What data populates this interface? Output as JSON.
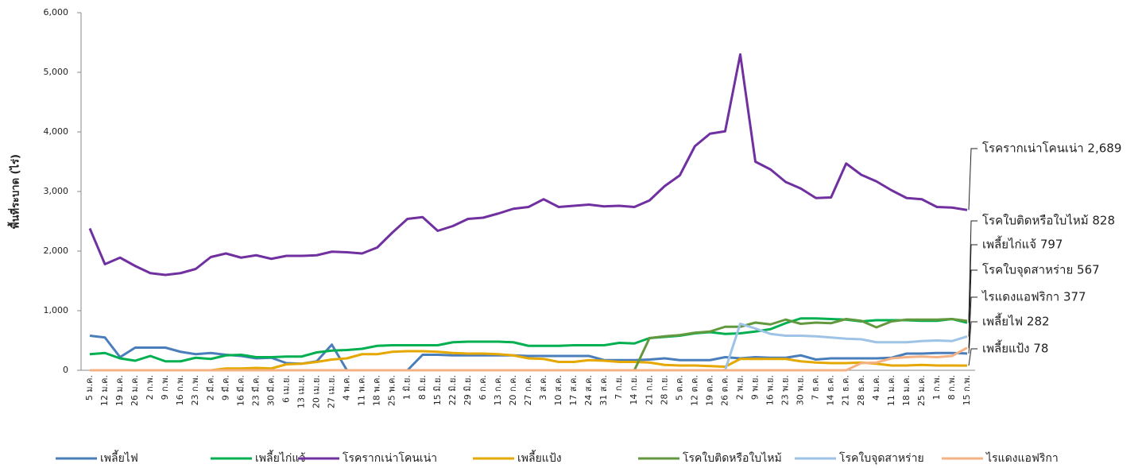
{
  "chart_data": {
    "type": "line",
    "ylabel": "พื้นที่ระบาด (ไร่)",
    "categories": [
      "5 ม.ค.",
      "12 ม.ค.",
      "19 ม.ค.",
      "26 ม.ค.",
      "2 ก.พ.",
      "9 ก.พ.",
      "16 ก.พ.",
      "23 ก.พ.",
      "2 มี.ค.",
      "9 มี.ค.",
      "16 มี.ค.",
      "23 มี.ค.",
      "30 มี.ค.",
      "6 เม.ย.",
      "13 เม.ย.",
      "20 เม.ย.",
      "27 เม.ย.",
      "4 พ.ค.",
      "11 พ.ค.",
      "18 พ.ค.",
      "25 พ.ค.",
      "1 มิ.ย.",
      "8 มิ.ย.",
      "15 มิ.ย.",
      "22 มิ.ย.",
      "29 มิ.ย.",
      "6 ก.ค.",
      "13 ก.ค.",
      "20 ก.ค.",
      "27 ก.ค.",
      "3 ส.ค.",
      "10 ส.ค.",
      "17 ส.ค.",
      "24 ส.ค.",
      "31 ส.ค.",
      "7 ก.ย.",
      "14 ก.ย.",
      "21 ก.ย.",
      "28 ก.ย.",
      "5 ต.ค.",
      "12 ต.ค.",
      "19 ต.ค.",
      "26 ต.ค.",
      "2 พ.ย.",
      "9 พ.ย.",
      "16 พ.ย.",
      "23 พ.ย.",
      "30 พ.ย.",
      "7 ธ.ค.",
      "14 ธ.ค.",
      "21 ธ.ค.",
      "28 ธ.ค.",
      "4 ม.ค.",
      "11 ม.ค.",
      "18 ม.ค.",
      "25 ม.ค.",
      "1 ก.พ.",
      "8 ก.พ.",
      "15 ก.พ."
    ],
    "series": [
      {
        "name": "เพลี้ยไฟ",
        "color": "#4a7ebb",
        "values": [
          580,
          550,
          220,
          380,
          380,
          380,
          310,
          270,
          290,
          260,
          240,
          200,
          210,
          120,
          110,
          150,
          430,
          0,
          0,
          0,
          0,
          0,
          260,
          260,
          250,
          250,
          250,
          250,
          250,
          240,
          240,
          240,
          240,
          240,
          170,
          170,
          170,
          180,
          200,
          170,
          170,
          170,
          220,
          200,
          220,
          210,
          210,
          250,
          180,
          200,
          200,
          200,
          200,
          210,
          280,
          280,
          290,
          290,
          282
        ]
      },
      {
        "name": "เพลี้ยไก่แจ้",
        "color": "#00b050",
        "values": [
          270,
          290,
          200,
          160,
          240,
          150,
          150,
          210,
          190,
          250,
          260,
          220,
          220,
          230,
          230,
          300,
          330,
          340,
          360,
          410,
          420,
          420,
          420,
          420,
          470,
          480,
          480,
          480,
          470,
          410,
          410,
          410,
          420,
          420,
          420,
          460,
          450,
          540,
          560,
          580,
          620,
          640,
          610,
          620,
          650,
          690,
          790,
          870,
          870,
          860,
          850,
          820,
          840,
          840,
          840,
          830,
          830,
          860,
          797
        ]
      },
      {
        "name": "โรครากเน่าโคนเน่า",
        "color": "#7030a0",
        "values": [
          2380,
          1780,
          1890,
          1750,
          1630,
          1600,
          1630,
          1700,
          1900,
          1960,
          1890,
          1930,
          1870,
          1920,
          1920,
          1930,
          1990,
          1980,
          1960,
          2060,
          2310,
          2540,
          2570,
          2340,
          2420,
          2540,
          2560,
          2630,
          2710,
          2740,
          2870,
          2740,
          2760,
          2780,
          2750,
          2760,
          2740,
          2850,
          3090,
          3270,
          3760,
          3970,
          4010,
          5300,
          3500,
          3370,
          3160,
          3050,
          2890,
          2900,
          3470,
          3280,
          3170,
          3020,
          2890,
          2870,
          2740,
          2730,
          2689
        ]
      },
      {
        "name": "เพลี้ยแป้ง",
        "color": "#e5a800",
        "values": [
          0,
          0,
          0,
          0,
          0,
          0,
          0,
          0,
          0,
          30,
          30,
          40,
          30,
          100,
          110,
          140,
          180,
          200,
          270,
          270,
          310,
          320,
          320,
          310,
          290,
          280,
          280,
          270,
          250,
          200,
          190,
          140,
          140,
          170,
          160,
          140,
          140,
          130,
          90,
          80,
          80,
          70,
          60,
          190,
          190,
          190,
          190,
          150,
          130,
          120,
          120,
          130,
          110,
          80,
          80,
          90,
          80,
          80,
          78
        ]
      },
      {
        "name": "โรคใบติดหรือใบไหม้",
        "color": "#62993e",
        "values": [
          0,
          0,
          0,
          0,
          0,
          0,
          0,
          0,
          0,
          0,
          0,
          0,
          0,
          0,
          0,
          0,
          0,
          0,
          0,
          0,
          0,
          0,
          0,
          0,
          0,
          0,
          0,
          0,
          0,
          0,
          0,
          0,
          0,
          0,
          0,
          0,
          0,
          540,
          570,
          590,
          630,
          650,
          730,
          730,
          800,
          770,
          850,
          780,
          800,
          790,
          860,
          830,
          720,
          820,
          850,
          850,
          850,
          860,
          828
        ]
      },
      {
        "name": "โรคใบจุดสาหร่าย",
        "color": "#9dc3e6",
        "values": [
          0,
          0,
          0,
          0,
          0,
          0,
          0,
          0,
          0,
          0,
          0,
          0,
          0,
          0,
          0,
          0,
          0,
          0,
          0,
          0,
          0,
          0,
          0,
          0,
          0,
          0,
          0,
          0,
          0,
          0,
          0,
          0,
          0,
          0,
          0,
          0,
          0,
          0,
          0,
          0,
          0,
          0,
          0,
          780,
          700,
          610,
          580,
          580,
          570,
          550,
          530,
          520,
          470,
          470,
          470,
          490,
          500,
          490,
          567
        ]
      },
      {
        "name": "ไรแดงแอฟริกา",
        "color": "#f4b183",
        "values": [
          0,
          0,
          0,
          0,
          0,
          0,
          0,
          0,
          0,
          0,
          0,
          0,
          0,
          0,
          0,
          0,
          0,
          0,
          0,
          0,
          0,
          0,
          0,
          0,
          0,
          0,
          0,
          0,
          0,
          0,
          0,
          0,
          0,
          0,
          0,
          0,
          0,
          0,
          0,
          0,
          0,
          0,
          0,
          0,
          0,
          0,
          0,
          0,
          0,
          0,
          0,
          120,
          130,
          200,
          220,
          230,
          220,
          240,
          377
        ]
      }
    ],
    "annotations": [
      "โรครากเน่าโคนเน่า 2,689",
      "โรคใบติดหรือใบไหม้ 828",
      "เพลี้ยไก่แจ้ 797",
      "โรคใบจุดสาหร่าย 567",
      "ไรแดงแอฟริกา 377",
      "เพลี้ยไฟ 282",
      "เพลี้ยแป้ง 78"
    ],
    "ylim": [
      0,
      6000
    ],
    "yticks": [
      0,
      {
        "value": 1000,
        "label": "1,000"
      },
      {
        "value": 2000,
        "label": "2,000"
      },
      {
        "value": 3000,
        "label": "3,000"
      },
      {
        "value": 4000,
        "label": "4,000"
      },
      {
        "value": 5000,
        "label": "5,000"
      },
      {
        "value": 6000,
        "label": "6,000"
      }
    ],
    "legend": "bottom"
  }
}
